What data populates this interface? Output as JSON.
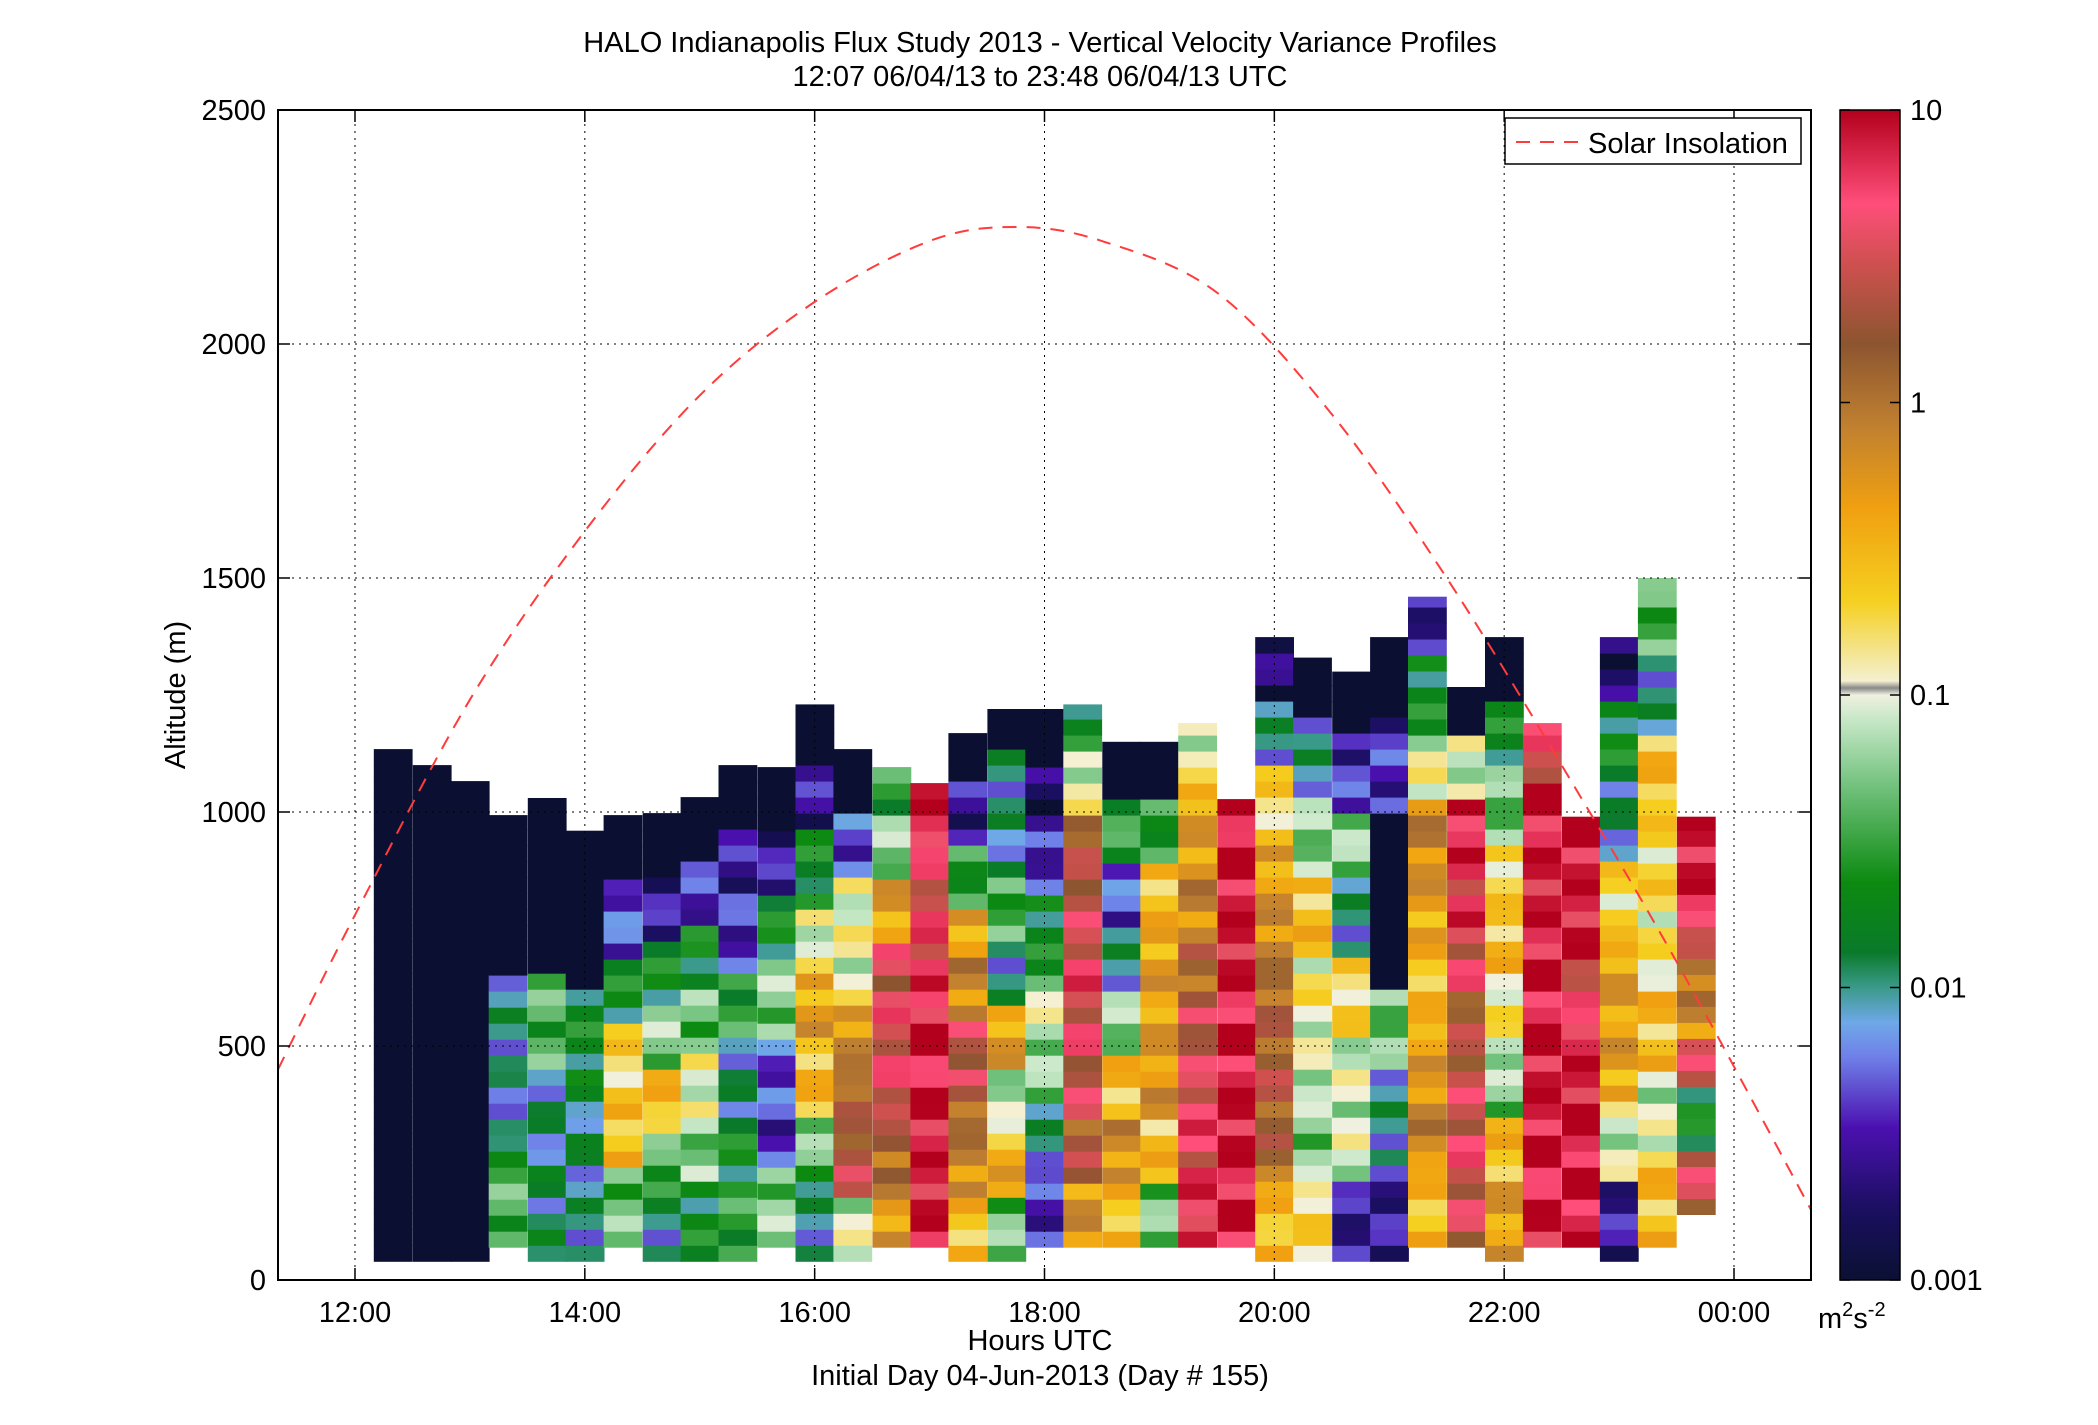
{
  "chart_data": {
    "type": "heatmap",
    "title": "HALO Indianapolis Flux Study 2013 - Vertical Velocity Variance Profiles",
    "subtitle": "12:07 06/04/13 to 23:48 06/04/13  UTC",
    "xlabel": "Hours UTC",
    "xlabel2": "Initial Day 04-Jun-2013 (Day # 155)",
    "ylabel": "Altitude (m)",
    "xlim": [
      11.33,
      24.67
    ],
    "ylim": [
      0,
      2500
    ],
    "xticks": [
      12,
      14,
      16,
      18,
      20,
      22,
      24
    ],
    "xtick_labels": [
      "12:00",
      "14:00",
      "16:00",
      "18:00",
      "20:00",
      "22:00",
      "00:00"
    ],
    "yticks": [
      0,
      500,
      1000,
      1500,
      2000,
      2500
    ],
    "ytick_labels": [
      "0",
      "500",
      "1000",
      "1500",
      "2000",
      "2500"
    ],
    "grid": true,
    "colorbar": {
      "scale": "log",
      "range": [
        0.001,
        10
      ],
      "ticks": [
        0.001,
        0.01,
        0.1,
        1,
        10
      ],
      "tick_labels": [
        "0.001",
        "0.01",
        "0.1",
        "1",
        "10"
      ],
      "unit_base": "m",
      "unit_exp1": "2",
      "unit_mid": "s",
      "unit_exp2": "-2"
    },
    "legend": {
      "position": "top-right",
      "entries": [
        "Solar Insolation"
      ]
    },
    "colors": {
      "insolation": "#ff3b3b",
      "background": "#ffffff",
      "grid": "#000000"
    },
    "insolation_curve": {
      "name": "Solar Insolation",
      "peak_hour": 17.75,
      "peak_altitude": 2250,
      "points": [
        [
          11.33,
          450
        ],
        [
          12.0,
          780
        ],
        [
          13.0,
          1240
        ],
        [
          14.0,
          1600
        ],
        [
          15.0,
          1890
        ],
        [
          16.0,
          2090
        ],
        [
          17.0,
          2220
        ],
        [
          17.75,
          2250
        ],
        [
          18.5,
          2220
        ],
        [
          19.5,
          2110
        ],
        [
          20.5,
          1850
        ],
        [
          21.5,
          1500
        ],
        [
          22.5,
          1100
        ],
        [
          23.5,
          680
        ],
        [
          24.67,
          150
        ]
      ]
    },
    "bin_width_hours": 0.3333,
    "columns": [
      {
        "t": 12.33,
        "top": 1150,
        "bottom": 40,
        "profile": [
          0.001,
          0.001,
          0.001
        ]
      },
      {
        "t": 12.67,
        "top": 1110,
        "bottom": 40,
        "profile": [
          0.001,
          0.001,
          0.001
        ]
      },
      {
        "t": 13.0,
        "top": 1070,
        "bottom": 40,
        "profile": [
          0.001,
          0.001,
          0.001
        ]
      },
      {
        "t": 13.33,
        "top": 1000,
        "bottom": 70,
        "profile": [
          0.04,
          0.008,
          0.01,
          0.001,
          0.001
        ]
      },
      {
        "t": 13.67,
        "top": 1030,
        "bottom": 40,
        "profile": [
          0.012,
          0.01,
          0.04,
          0.001,
          0.001
        ]
      },
      {
        "t": 14.0,
        "top": 960,
        "bottom": 40,
        "profile": [
          0.01,
          0.012,
          0.02,
          0.001,
          0.001
        ]
      },
      {
        "t": 14.33,
        "top": 1000,
        "bottom": 70,
        "profile": [
          0.05,
          0.3,
          0.2,
          0.02,
          0.005,
          0.001
        ]
      },
      {
        "t": 14.67,
        "top": 1000,
        "bottom": 40,
        "profile": [
          0.01,
          0.04,
          0.3,
          0.06,
          0.02,
          0.003,
          0.001
        ]
      },
      {
        "t": 15.0,
        "top": 1040,
        "bottom": 40,
        "profile": [
          0.02,
          0.06,
          0.12,
          0.05,
          0.02,
          0.004,
          0.001
        ]
      },
      {
        "t": 15.33,
        "top": 1110,
        "bottom": 40,
        "profile": [
          0.03,
          0.02,
          0.01,
          0.03,
          0.004,
          0.003,
          0.001
        ]
      },
      {
        "t": 15.67,
        "top": 1110,
        "bottom": 70,
        "profile": [
          0.06,
          0.004,
          0.005,
          0.06,
          0.02,
          0.003,
          0.001
        ]
      },
      {
        "t": 16.0,
        "top": 1230,
        "bottom": 40,
        "profile": [
          0.01,
          0.05,
          0.3,
          0.5,
          0.12,
          0.02,
          0.003,
          0.001
        ]
      },
      {
        "t": 16.33,
        "top": 1150,
        "bottom": 40,
        "profile": [
          0.1,
          2.5,
          1.5,
          0.7,
          0.12,
          0.12,
          0.005,
          0.001
        ]
      },
      {
        "t": 16.67,
        "top": 1110,
        "bottom": 70,
        "profile": [
          0.6,
          1.5,
          4.0,
          4.0,
          3.5,
          0.5,
          0.06,
          0.03
        ]
      },
      {
        "t": 17.0,
        "top": 1070,
        "bottom": 70,
        "profile": [
          8,
          8,
          8,
          6,
          4,
          8
        ]
      },
      {
        "t": 17.33,
        "top": 1180,
        "bottom": 40,
        "profile": [
          0.3,
          0.8,
          1.5,
          3,
          0.8,
          0.5,
          0.03,
          0.003,
          0.001
        ]
      },
      {
        "t": 17.67,
        "top": 1220,
        "bottom": 40,
        "profile": [
          0.05,
          0.4,
          0.08,
          0.5,
          0.01,
          0.04,
          0.01,
          0.01,
          0.001
        ]
      },
      {
        "t": 18.0,
        "top": 1220,
        "bottom": 70,
        "profile": [
          0.004,
          0.01,
          0.06,
          0.1,
          0.02,
          0.004,
          0.002,
          0.001
        ]
      },
      {
        "t": 18.33,
        "top": 1230,
        "bottom": 70,
        "profile": [
          0.6,
          2,
          3,
          4,
          5,
          3,
          2,
          0.12,
          0.02
        ]
      },
      {
        "t": 18.67,
        "top": 1150,
        "bottom": 70,
        "profile": [
          0.3,
          0.7,
          0.3,
          0.06,
          0.01,
          0.005,
          0.03,
          0.001
        ]
      },
      {
        "t": 19.0,
        "top": 1150,
        "bottom": 70,
        "profile": [
          0.05,
          0.3,
          0.6,
          0.5,
          0.5,
          0.3,
          0.03,
          0.001
        ]
      },
      {
        "t": 19.33,
        "top": 1190,
        "bottom": 70,
        "profile": [
          6,
          5,
          3,
          1.5,
          0.8,
          0.5,
          0.12
        ]
      },
      {
        "t": 19.67,
        "top": 1040,
        "bottom": 70,
        "profile": [
          8,
          9,
          9,
          8,
          9,
          9
        ]
      },
      {
        "t": 20.0,
        "top": 1380,
        "bottom": 40,
        "profile": [
          0.3,
          1.5,
          2,
          1.5,
          0.8,
          0.5,
          0.2,
          0.01,
          0.002
        ]
      },
      {
        "t": 20.33,
        "top": 1330,
        "bottom": 40,
        "profile": [
          0.2,
          0.06,
          0.1,
          0.15,
          0.3,
          0.06,
          0.01,
          0.001
        ]
      },
      {
        "t": 20.67,
        "top": 1300,
        "bottom": 40,
        "profile": [
          0.003,
          0.1,
          0.1,
          0.2,
          0.01,
          0.06,
          0.004,
          0.001
        ]
      },
      {
        "t": 21.0,
        "top": 1380,
        "bottom": 40,
        "profile": [
          0.003,
          0.01,
          0.05,
          0.001,
          0.001,
          0.004,
          0.001
        ]
      },
      {
        "t": 21.33,
        "top": 1460,
        "bottom": 70,
        "profile": [
          0.3,
          0.8,
          0.5,
          0.3,
          0.5,
          0.8,
          0.12,
          0.02,
          0.003
        ]
      },
      {
        "t": 21.67,
        "top": 1270,
        "bottom": 70,
        "profile": [
          3,
          4,
          3,
          2,
          4,
          6,
          8,
          0.1,
          0.001
        ]
      },
      {
        "t": 22.0,
        "top": 1380,
        "bottom": 40,
        "profile": [
          0.5,
          0.3,
          0.06,
          0.15,
          0.3,
          0.2,
          0.05,
          0.02,
          0.001
        ]
      },
      {
        "t": 22.33,
        "top": 1190,
        "bottom": 70,
        "profile": [
          8,
          9,
          9,
          8,
          8,
          8,
          4
        ]
      },
      {
        "t": 22.67,
        "top": 990,
        "bottom": 70,
        "profile": [
          9,
          9,
          8,
          4,
          8,
          9
        ]
      },
      {
        "t": 23.0,
        "top": 1380,
        "bottom": 40,
        "profile": [
          0.003,
          0.1,
          0.5,
          0.5,
          0.2,
          0.01,
          0.02,
          0.002
        ]
      },
      {
        "t": 23.33,
        "top": 1500,
        "bottom": 70,
        "profile": [
          0.3,
          0.1,
          0.3,
          0.15,
          0.2,
          0.3,
          0.01,
          0.04
        ]
      },
      {
        "t": 23.67,
        "top": 990,
        "bottom": 140,
        "profile": [
          3,
          0.02,
          3,
          0.8,
          2,
          8,
          9
        ]
      }
    ]
  }
}
